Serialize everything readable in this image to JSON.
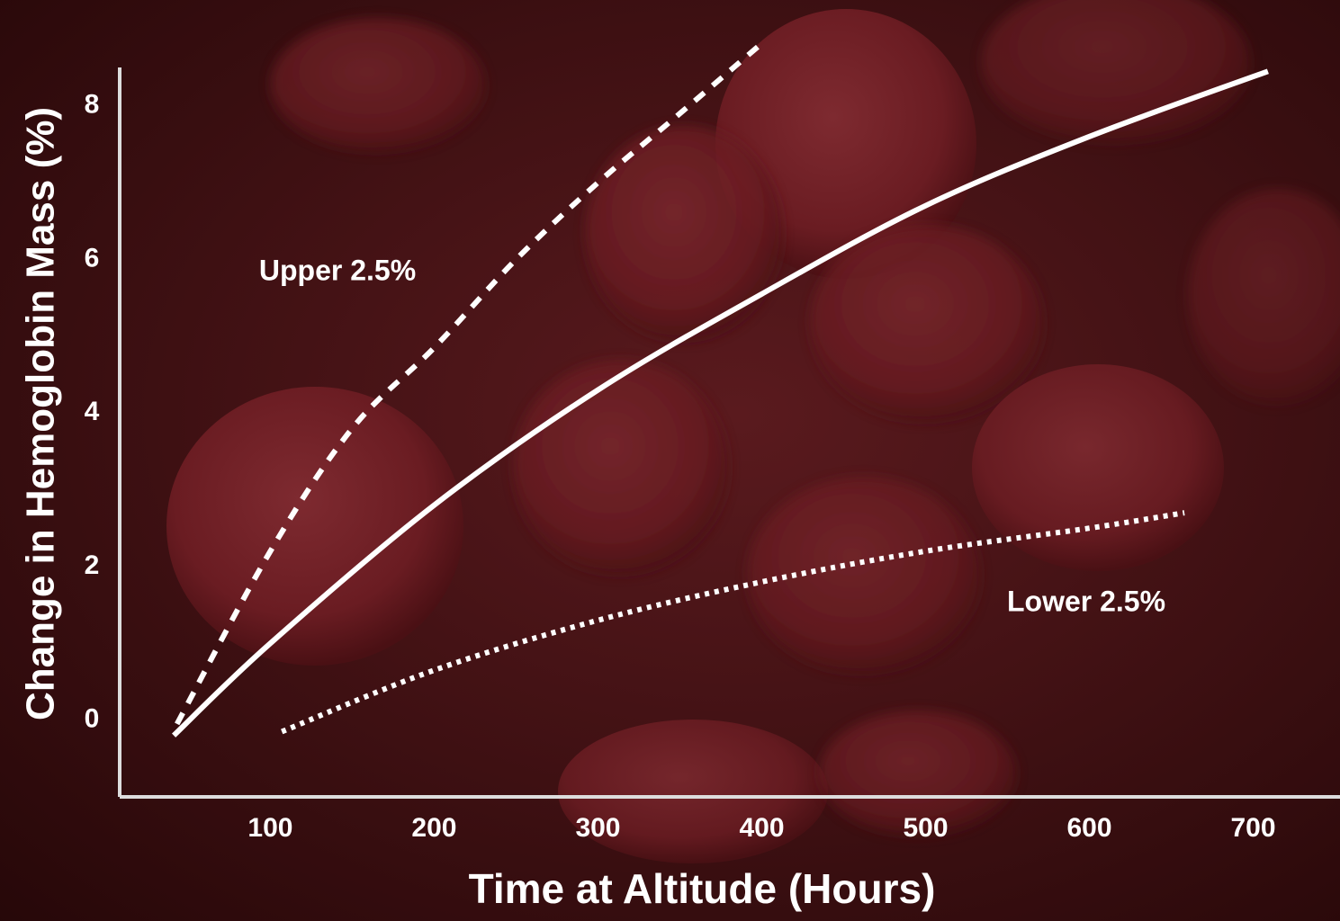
{
  "chart_data": {
    "type": "line",
    "ylabel": "Change in Hemoglobin Mass (%)",
    "xlabel": "Time at Altitude   (Hours)",
    "xlim": [
      8,
      753
    ],
    "xticks": [
      100,
      200,
      300,
      400,
      500,
      600,
      700
    ],
    "ylim": [
      -1,
      8.5
    ],
    "yticks": [
      0,
      2,
      4,
      6,
      8
    ],
    "annotations": [
      "Upper 2.5%",
      "Lower 2.5%"
    ],
    "series": [
      {
        "color": "#ffffff",
        "style": "solid",
        "x": [
          41,
          100,
          200,
          300,
          400,
          500,
          600,
          709
        ],
        "values": [
          -0.2,
          1.0,
          2.8,
          4.3,
          5.55,
          6.7,
          7.6,
          8.45
        ]
      },
      {
        "color": "#ffffff",
        "style": "dashed",
        "x": [
          43,
          100,
          150,
          200,
          250,
          300,
          350,
          402
        ],
        "values": [
          -0.05,
          2.2,
          3.8,
          4.85,
          6.0,
          7.0,
          7.9,
          8.85
        ]
      },
      {
        "color": "#ffffff",
        "style": "dotted",
        "x": [
          107,
          200,
          300,
          400,
          500,
          600,
          658
        ],
        "values": [
          -0.15,
          0.65,
          1.3,
          1.8,
          2.2,
          2.5,
          2.7
        ]
      }
    ]
  }
}
